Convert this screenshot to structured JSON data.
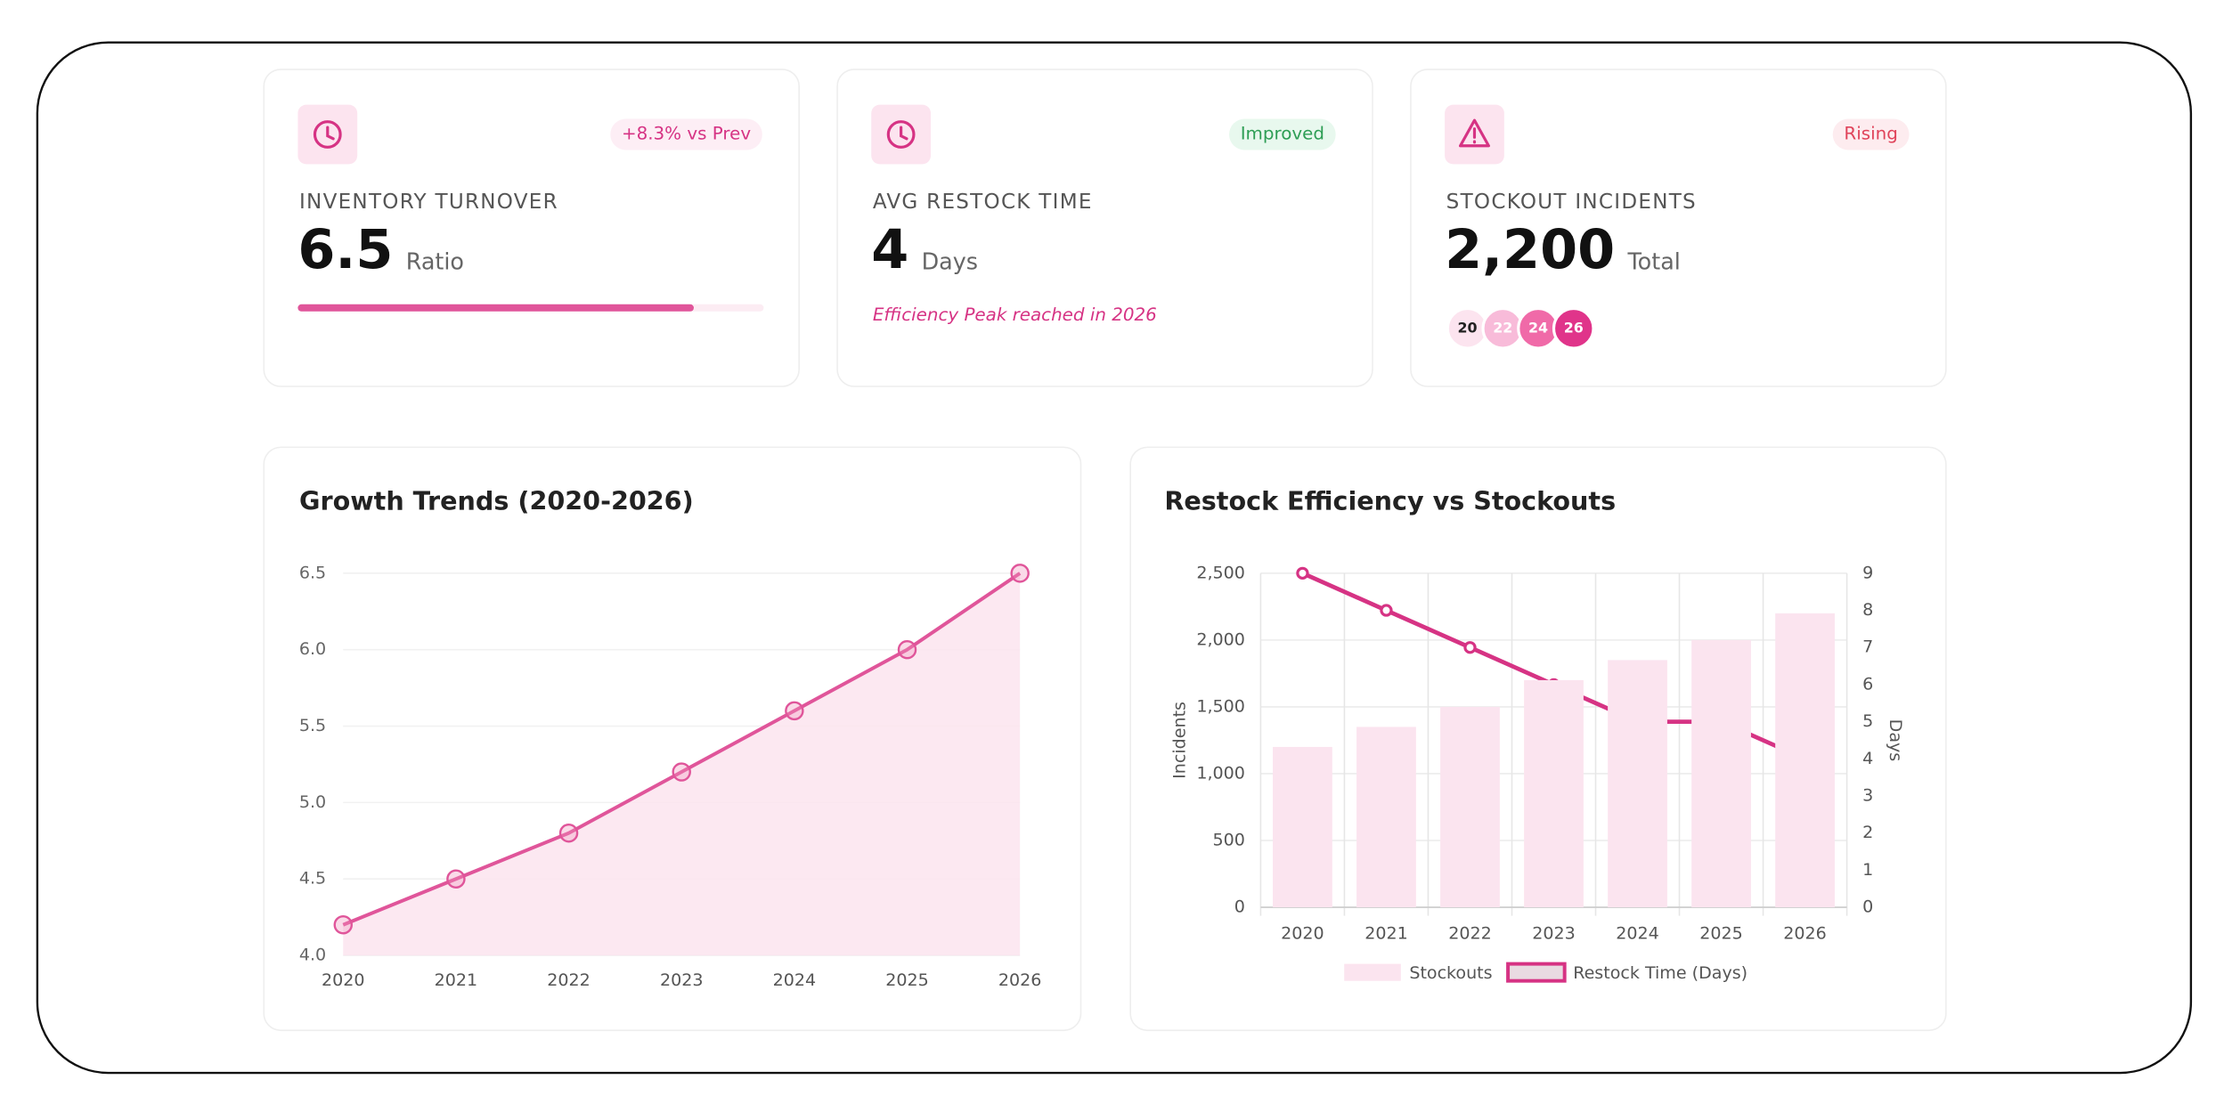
{
  "cards": [
    {
      "badge": "+8.3% vs Prev",
      "label": "INVENTORY TURNOVER",
      "value": "6.5",
      "unit": "Ratio",
      "progress": 85
    },
    {
      "badge": "Improved",
      "label": "AVG RESTOCK TIME",
      "value": "4",
      "unit": "Days",
      "note": "Efficiency Peak reached in 2026"
    },
    {
      "badge": "Rising",
      "label": "STOCKOUT INCIDENTS",
      "value": "2,200",
      "unit": "Total",
      "chips": [
        "20",
        "22",
        "24",
        "26"
      ]
    }
  ],
  "chart_data": [
    {
      "type": "area",
      "title": "Growth Trends (2020-2026)",
      "categories": [
        "2020",
        "2021",
        "2022",
        "2023",
        "2024",
        "2025",
        "2026"
      ],
      "values": [
        4.2,
        4.5,
        4.8,
        5.2,
        5.6,
        6.0,
        6.5
      ],
      "color": "#e0559a",
      "ylim": [
        4.0,
        6.5
      ],
      "yticks": [
        {
          "value": 4,
          "label": "4.0"
        },
        4.5,
        {
          "value": 5,
          "label": "5.0"
        },
        5.5,
        {
          "value": 6,
          "label": "6.0"
        },
        6.5
      ],
      "grid": true
    },
    {
      "type": "bar",
      "title": "Restock Efficiency vs Stockouts",
      "categories": [
        "2020",
        "2021",
        "2022",
        "2023",
        "2024",
        "2025",
        "2026"
      ],
      "ylabel": "Incidents",
      "y2label": "Days",
      "series": [
        {
          "name": "Stockouts",
          "color": "#fbe4ef",
          "values": [
            1200,
            1350,
            1500,
            1700,
            1850,
            2000,
            2200
          ]
        },
        {
          "name": "Restock Time (Days)",
          "type": "line",
          "axis": "y2",
          "color": "#d63384",
          "values": [
            9,
            8,
            7,
            6,
            5,
            5,
            4
          ]
        }
      ],
      "ylim": [
        0,
        2500
      ],
      "yticks": [
        0,
        500,
        {
          "value": 1000,
          "label": "1,000"
        },
        {
          "value": 1500,
          "label": "1,500"
        },
        {
          "value": 2000,
          "label": "2,000"
        },
        {
          "value": 2500,
          "label": "2,500"
        }
      ],
      "y2lim": [
        0,
        9
      ],
      "y2ticks": [
        0,
        1,
        2,
        3,
        4,
        5,
        6,
        7,
        8,
        9
      ],
      "grid": true
    }
  ]
}
